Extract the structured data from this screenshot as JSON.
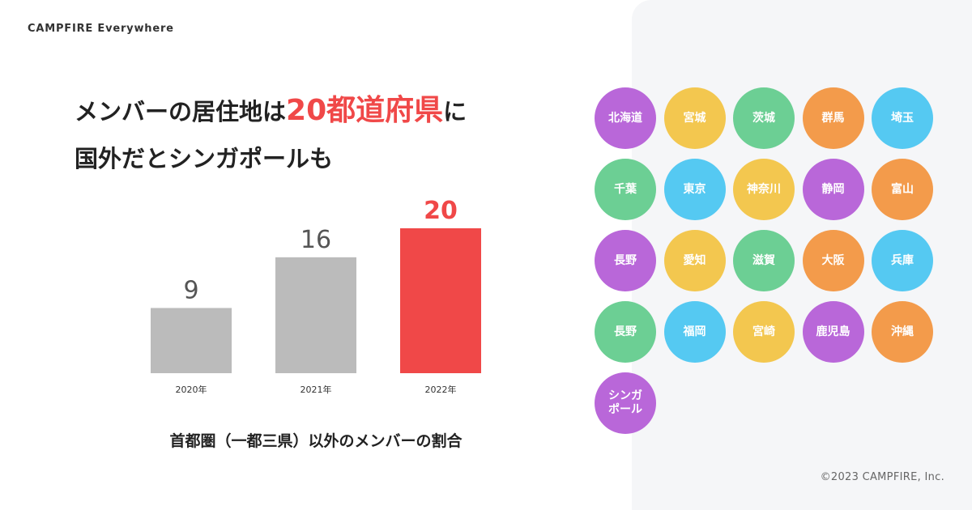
{
  "brand": "CAMPFIRE Everywhere",
  "headline": {
    "line1_pre": "メンバーの居住地は",
    "line1_highlight": "20都道府県",
    "line1_post": "に",
    "line2": "国外だとシンガポールも"
  },
  "chart_data": {
    "type": "bar",
    "categories": [
      "2020年",
      "2021年",
      "2022年"
    ],
    "values": [
      9,
      16,
      20
    ],
    "title": "首都圏（一都三県）以外のメンバーの割合",
    "xlabel": "",
    "ylabel": "",
    "ylim": [
      0,
      20
    ],
    "grid": false,
    "bar_colors": [
      "#bbbbbb",
      "#bbbbbb",
      "#f04848"
    ],
    "value_label_colors": [
      "#555555",
      "#555555",
      "#f04848"
    ]
  },
  "prefectures": [
    {
      "name": "北海道",
      "color": "#b967d9"
    },
    {
      "name": "宮城",
      "color": "#f3c74f"
    },
    {
      "name": "茨城",
      "color": "#6ccf94"
    },
    {
      "name": "群馬",
      "color": "#f39b4b"
    },
    {
      "name": "埼玉",
      "color": "#55c9f2"
    },
    {
      "name": "千葉",
      "color": "#6ccf94"
    },
    {
      "name": "東京",
      "color": "#55c9f2"
    },
    {
      "name": "神奈川",
      "color": "#f3c74f"
    },
    {
      "name": "静岡",
      "color": "#b967d9"
    },
    {
      "name": "富山",
      "color": "#f39b4b"
    },
    {
      "name": "長野",
      "color": "#b967d9"
    },
    {
      "name": "愛知",
      "color": "#f3c74f"
    },
    {
      "name": "滋賀",
      "color": "#6ccf94"
    },
    {
      "name": "大阪",
      "color": "#f39b4b"
    },
    {
      "name": "兵庫",
      "color": "#55c9f2"
    },
    {
      "name": "長野",
      "color": "#6ccf94"
    },
    {
      "name": "福岡",
      "color": "#55c9f2"
    },
    {
      "name": "宮崎",
      "color": "#f3c74f"
    },
    {
      "name": "鹿児島",
      "color": "#b967d9"
    },
    {
      "name": "沖縄",
      "color": "#f39b4b"
    },
    {
      "name": "シンガ\nポール",
      "color": "#b967d9"
    }
  ],
  "copyright": "©2023 CAMPFIRE, Inc."
}
